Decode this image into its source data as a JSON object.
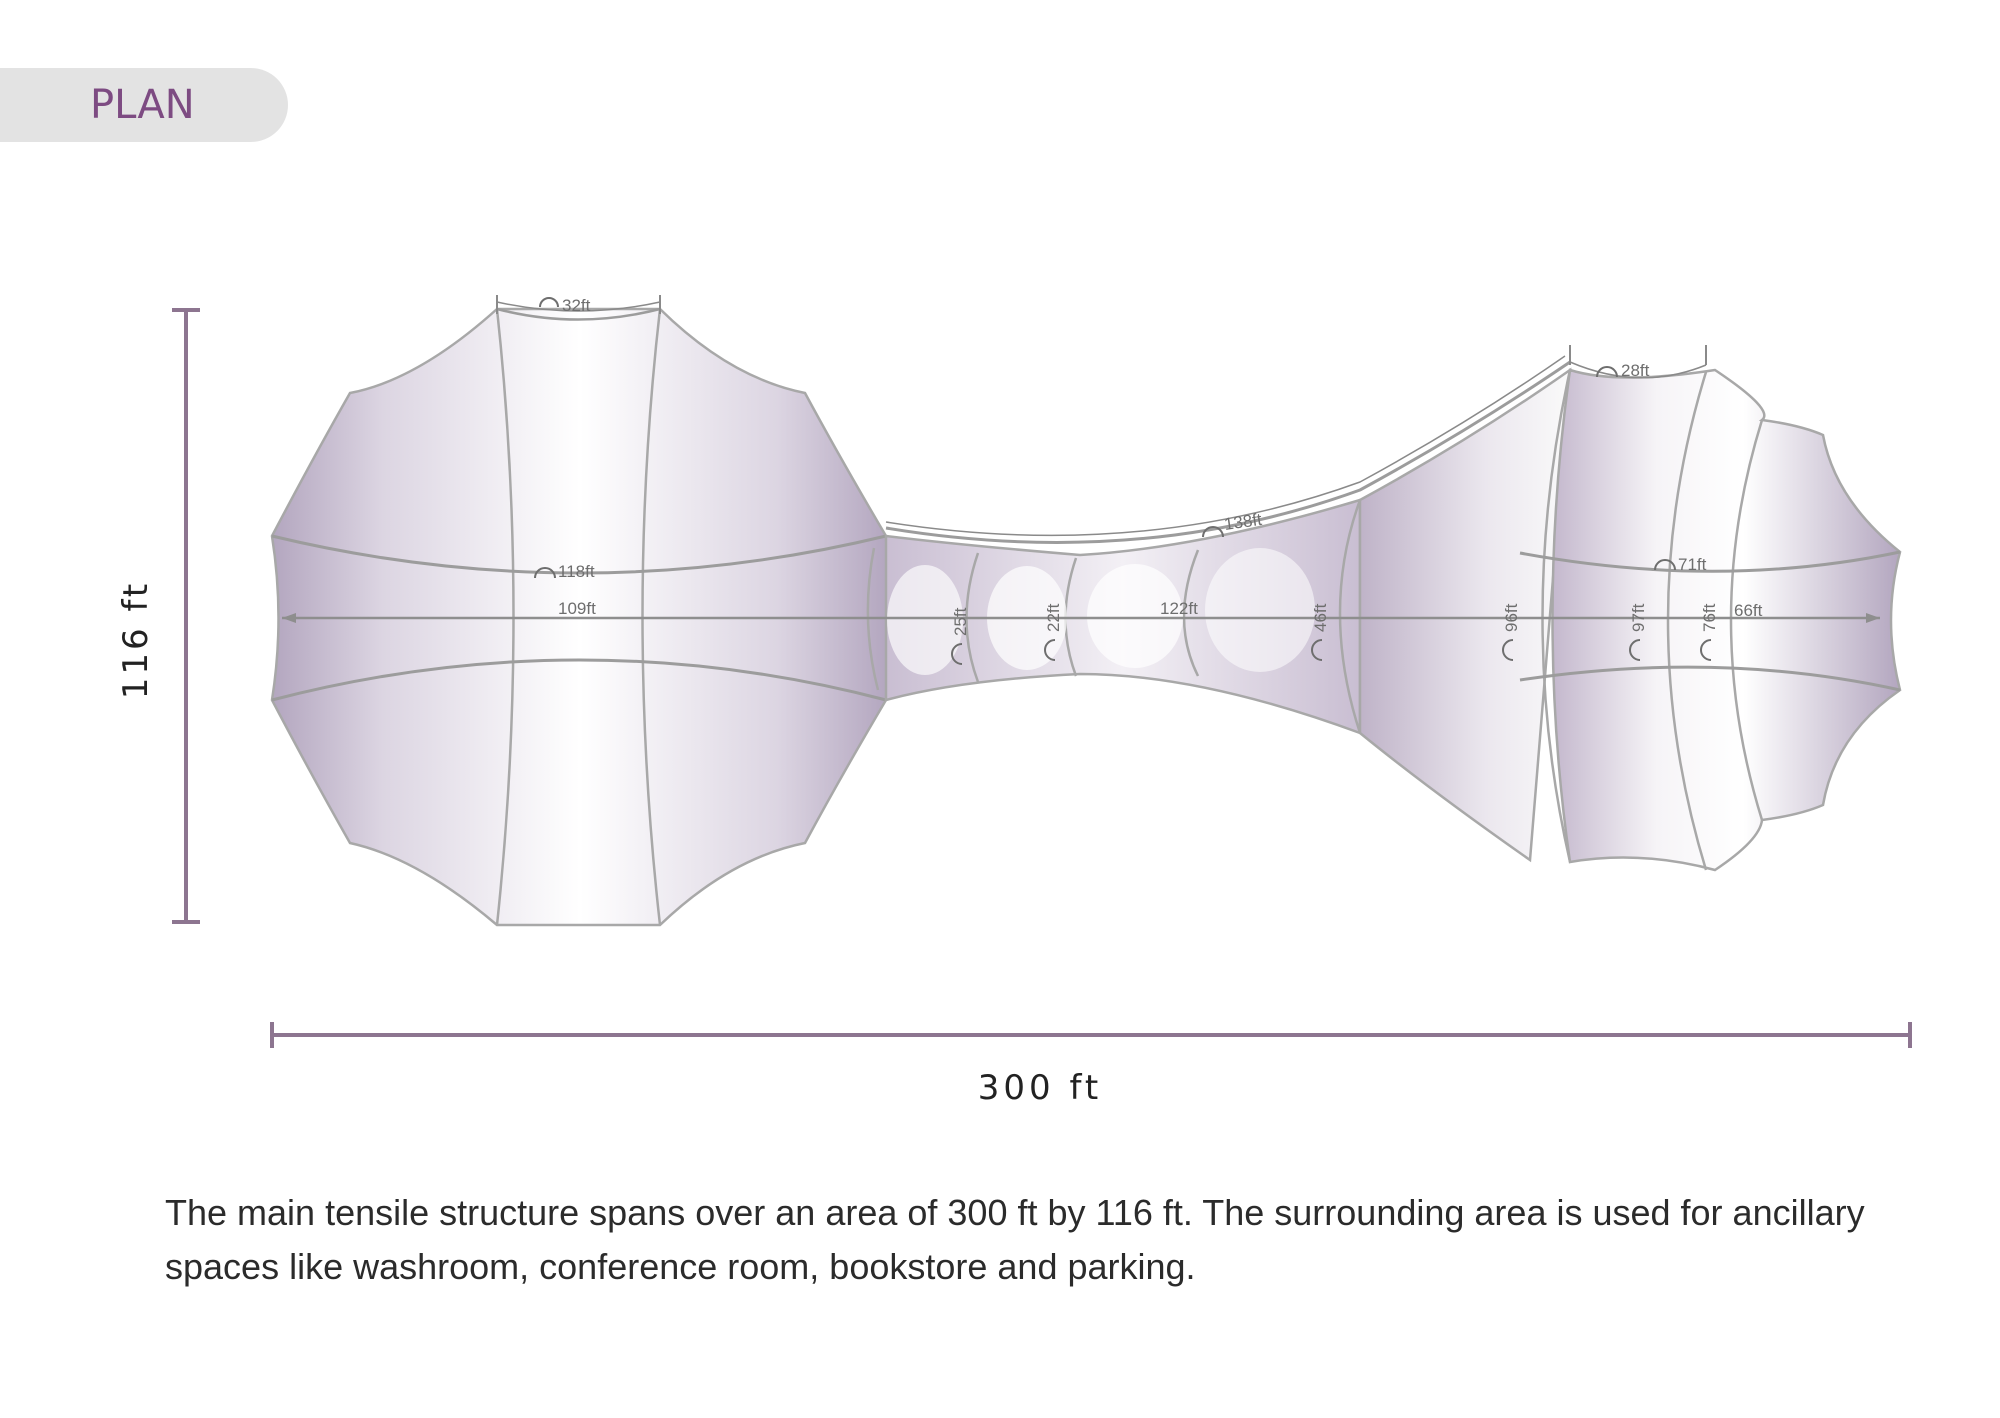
{
  "header": {
    "label": "PLAN"
  },
  "dimensions": {
    "width_label": "300 ft",
    "height_label": "116 ft"
  },
  "measurements": {
    "top_left": "32ft",
    "left_arc": "118ft",
    "left_span": "109ft",
    "top_middle": "138ft",
    "top_right": "28ft",
    "right_arc": "71ft",
    "center_span": "122ft",
    "section_1": "25ft",
    "section_2": "22ft",
    "section_3": "46ft",
    "section_4": "96ft",
    "section_5": "97ft",
    "section_6": "76ft",
    "right_span": "66ft"
  },
  "description": "The main tensile structure spans over an area of 300 ft by 116 ft. The surrounding area is used for ancillary spaces like washroom, conference room, bookstore and parking.",
  "colors": {
    "accent": "#7d4b82",
    "dimension_line": "#8d7590",
    "membrane_shadow": "#b8abc2"
  }
}
